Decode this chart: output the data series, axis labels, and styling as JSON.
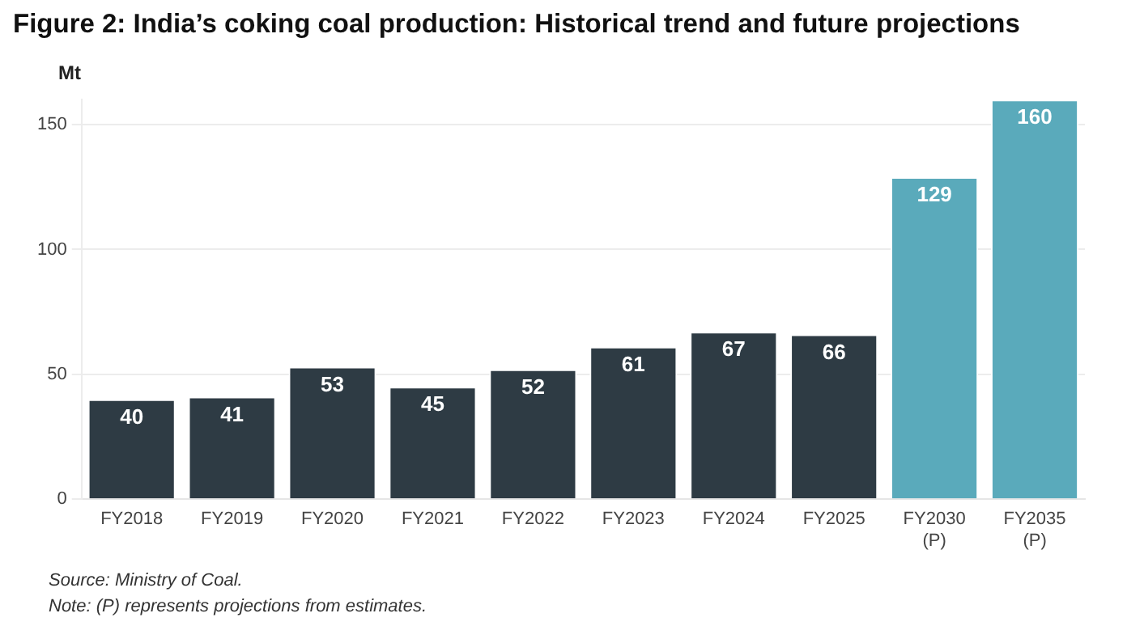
{
  "chart_data": {
    "type": "bar",
    "title": "Figure 2: India’s coking coal production: Historical trend and future projections",
    "ylabel": "Mt",
    "categories": [
      "FY2018",
      "FY2019",
      "FY2020",
      "FY2021",
      "FY2022",
      "FY2023",
      "FY2024",
      "FY2025",
      "FY2030 (P)",
      "FY2035 (P)"
    ],
    "values": [
      40,
      41,
      53,
      45,
      52,
      61,
      67,
      66,
      129,
      160
    ],
    "colors": [
      "#2e3b44",
      "#2e3b44",
      "#2e3b44",
      "#2e3b44",
      "#2e3b44",
      "#2e3b44",
      "#2e3b44",
      "#2e3b44",
      "#5aaabb",
      "#5aaabb"
    ],
    "ylim": [
      0,
      160
    ],
    "yticks": [
      0,
      50,
      100,
      150
    ],
    "grid": "y",
    "data_labels": true,
    "legend": false,
    "annotations": [
      "Source: Ministry of Coal.",
      "Note: (P) represents projections from estimates."
    ]
  }
}
